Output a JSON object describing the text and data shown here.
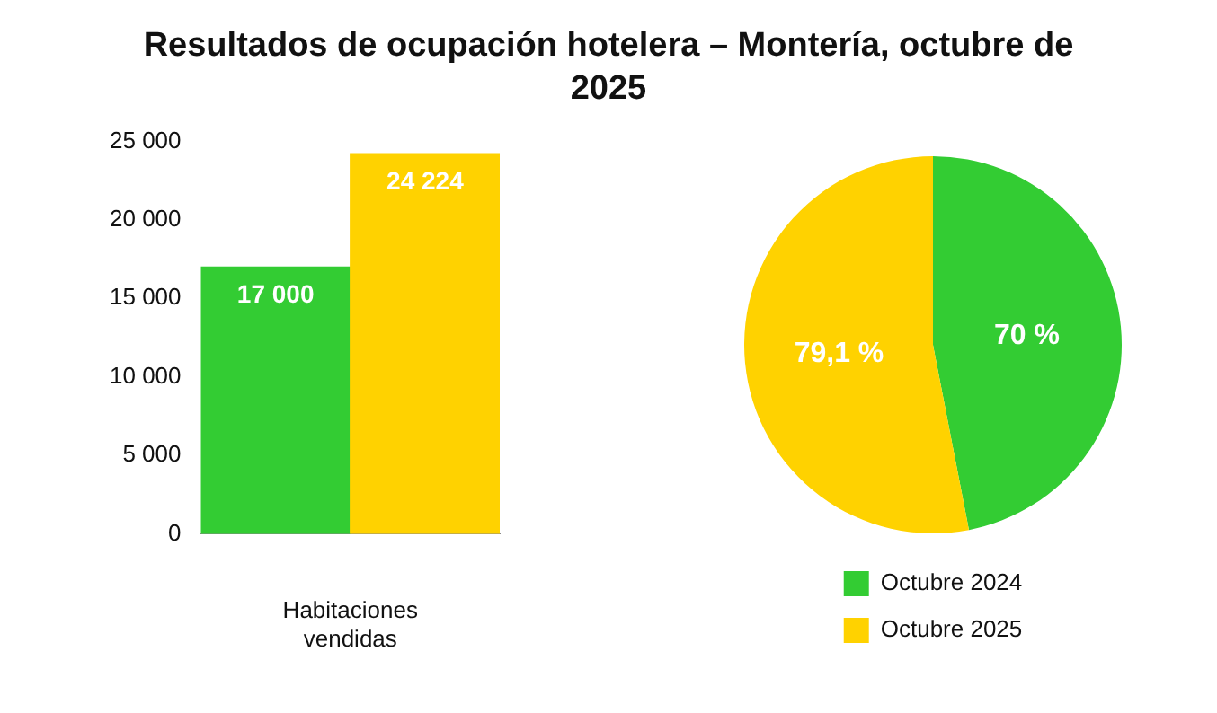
{
  "chart_data": [
    {
      "type": "bar",
      "title": "Resultados de ocupación hotelera – Montería, octubre de 2025",
      "xlabel": "Habitaciones vendidas",
      "categories": [
        null,
        null
      ],
      "values": [
        17000,
        24224
      ],
      "colors": [
        "#33cc33",
        "#ffd200"
      ],
      "value_labels": [
        "17 000",
        "24 224"
      ],
      "ylim": [
        0,
        25000
      ],
      "yticks": [
        {
          "value": 0,
          "label": "0"
        },
        {
          "value": 5000,
          "label": "5 000"
        },
        {
          "value": 10000,
          "label": "10 000"
        },
        {
          "value": 15000,
          "label": "15 000"
        },
        {
          "value": 20000,
          "label": "20 000"
        },
        {
          "value": 25000,
          "label": "25 000"
        }
      ],
      "grid": false,
      "legend": false
    },
    {
      "type": "pie",
      "categories": [
        "Octubre 2024",
        "Octubre 2025"
      ],
      "values": [
        70,
        79.1
      ],
      "colors": [
        "#33cc33",
        "#ffd200"
      ],
      "value_labels": [
        "70 %",
        "79,1 %"
      ],
      "legend": "bottom"
    }
  ]
}
